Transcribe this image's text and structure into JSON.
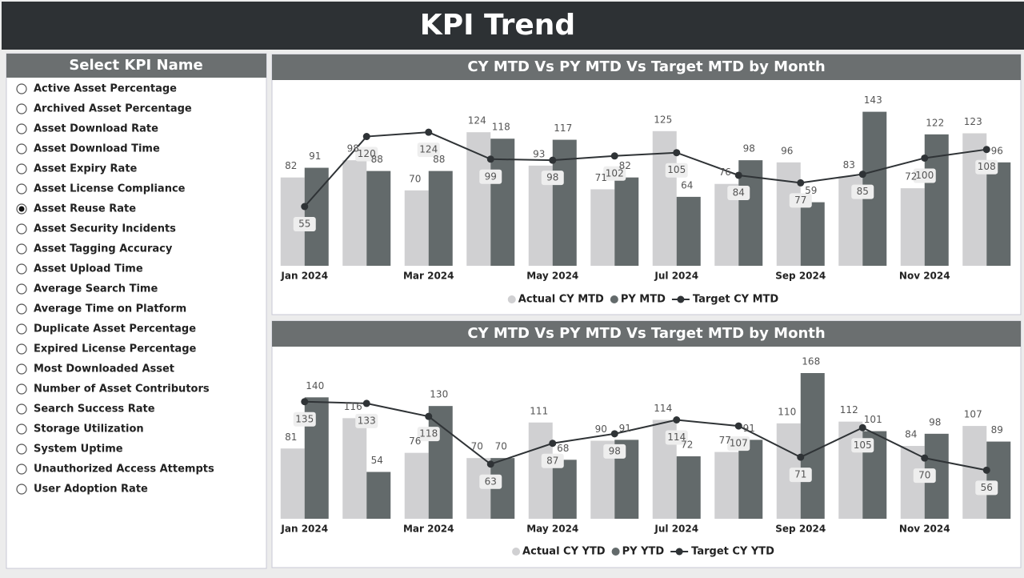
{
  "header": {
    "title": "KPI Trend"
  },
  "slicer": {
    "title": "Select KPI Name",
    "selected": 6,
    "options": [
      "Active Asset Percentage",
      "Archived Asset Percentage",
      "Asset Download Rate",
      "Asset Download Time",
      "Asset Expiry Rate",
      "Asset License Compliance",
      "Asset Reuse Rate",
      "Asset Security Incidents",
      "Asset Tagging Accuracy",
      "Asset Upload Time",
      "Average Search Time",
      "Average Time on Platform",
      "Duplicate Asset Percentage",
      "Expired License Percentage",
      "Most Downloaded Asset",
      "Number of Asset Contributors",
      "Search Success Rate",
      "Storage Utilization",
      "System Uptime",
      "Unauthorized Access Attempts",
      "User Adoption Rate"
    ]
  },
  "chart_data": [
    {
      "type": "combo",
      "title": "CY MTD Vs PY MTD Vs Target MTD by Month",
      "categories": [
        "Jan 2024",
        null,
        "Mar 2024",
        null,
        "May 2024",
        null,
        "Jul 2024",
        null,
        "Sep 2024",
        null,
        "Nov 2024",
        null
      ],
      "ylim": [
        0,
        165
      ],
      "legend": "bottom",
      "grid": false,
      "series": [
        {
          "name": "Actual CY MTD",
          "type": "bar",
          "color": "#d0d0d2",
          "values": [
            82,
            98,
            70,
            124,
            93,
            71,
            125,
            76,
            96,
            83,
            72,
            123
          ]
        },
        {
          "name": "PY MTD",
          "type": "bar",
          "color": "#636a6b",
          "values": [
            91,
            88,
            88,
            118,
            117,
            82,
            64,
            98,
            59,
            143,
            122,
            96
          ]
        },
        {
          "name": "Target CY MTD",
          "type": "line",
          "color": "#2f3336",
          "values": [
            55,
            120,
            124,
            99,
            98,
            102,
            105,
            84,
            77,
            85,
            100,
            108
          ]
        }
      ]
    },
    {
      "type": "combo",
      "title": "CY MTD Vs PY MTD Vs Target MTD by Month",
      "categories": [
        "Jan 2024",
        null,
        "Mar 2024",
        null,
        "May 2024",
        null,
        "Jul 2024",
        null,
        "Sep 2024",
        null,
        "Nov 2024",
        null
      ],
      "ylim": [
        0,
        192
      ],
      "legend": "bottom",
      "grid": false,
      "series": [
        {
          "name": "Actual CY YTD",
          "type": "bar",
          "color": "#d0d0d2",
          "values": [
            81,
            116,
            76,
            70,
            111,
            90,
            114,
            77,
            110,
            112,
            84,
            107
          ]
        },
        {
          "name": "PY YTD",
          "type": "bar",
          "color": "#636a6b",
          "values": [
            140,
            54,
            130,
            70,
            68,
            91,
            72,
            91,
            168,
            101,
            98,
            89
          ]
        },
        {
          "name": "Target CY YTD",
          "type": "line",
          "color": "#2f3336",
          "values": [
            135,
            133,
            118,
            63,
            87,
            98,
            114,
            107,
            71,
            105,
            70,
            56
          ]
        }
      ]
    }
  ]
}
